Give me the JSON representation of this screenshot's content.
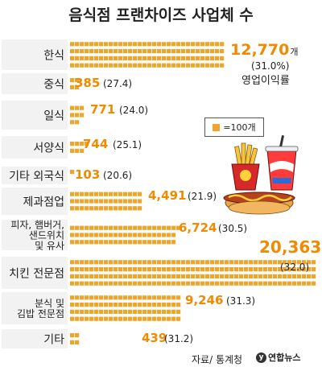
{
  "title": "음식점 프랜차이즈 사업체 수",
  "legend": {
    "label": "=100개"
  },
  "source": "자료/ 통계청",
  "logo_text": "연합뉴스",
  "note": "영업이익률",
  "unit": "개",
  "colors": {
    "unit_block": "#f0a52a",
    "value_text": "#f08a00",
    "label_band": "#f2f2f2"
  },
  "chart_data": {
    "type": "bar",
    "title": "음식점 프랜차이즈 사업체 수",
    "units_per_block": 100,
    "categories": [
      "한식",
      "중식",
      "일식",
      "서양식",
      "기타 외국식",
      "제과점업",
      "피자, 햄버거, 샌드위치 및 유사",
      "치킨 전문점",
      "분식 및 김밥 전문점",
      "기타"
    ],
    "category_lines": [
      [
        "한식"
      ],
      [
        "중식"
      ],
      [
        "일식"
      ],
      [
        "서양식"
      ],
      [
        "기타 외국식"
      ],
      [
        "제과점업"
      ],
      [
        "피자, 햄버거,",
        "샌드위치",
        "및 유사"
      ],
      [
        "치킨 전문점"
      ],
      [
        "분식 및",
        "김밥 전문점"
      ],
      [
        "기타"
      ]
    ],
    "values": [
      12770,
      385,
      771,
      744,
      103,
      4491,
      6724,
      20363,
      9246,
      439
    ],
    "value_labels": [
      "12,770",
      "385",
      "771",
      "744",
      "103",
      "4,491",
      "6,724",
      "20,363",
      "9,246",
      "439"
    ],
    "margin_labels": [
      "(31.0%)",
      "(27.4)",
      "(24.0)",
      "(25.1)",
      "(20.6)",
      "(21.9)",
      "(30.5)",
      "(32.0)",
      "(31.3)",
      "(31.2)"
    ],
    "series": [
      {
        "name": "사업체 수",
        "values": [
          12770,
          385,
          771,
          744,
          103,
          4491,
          6724,
          20363,
          9246,
          439
        ]
      },
      {
        "name": "영업이익률",
        "values": [
          31.0,
          27.4,
          24.0,
          25.1,
          20.6,
          21.9,
          30.5,
          32.0,
          31.3,
          31.2
        ]
      }
    ]
  }
}
